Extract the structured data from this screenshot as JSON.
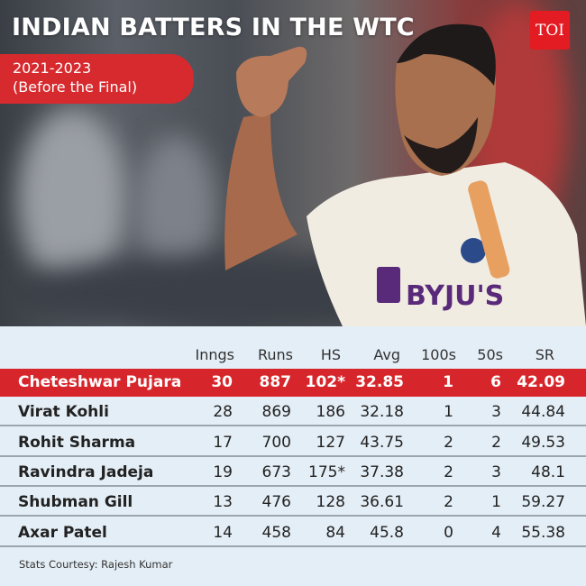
{
  "title": "INDIAN BATTERS IN THE WTC",
  "period": {
    "line1": "2021-2023",
    "line2": "(Before the Final)"
  },
  "logo": "TOI",
  "photo": {
    "jersey_text": "BYJU'S"
  },
  "table": {
    "columns": [
      "Inngs",
      "Runs",
      "HS",
      "Avg",
      "100s",
      "50s",
      "SR"
    ],
    "rows": [
      {
        "name": "Cheteshwar Pujara",
        "values": [
          "30",
          "887",
          "102*",
          "32.85",
          "1",
          "6",
          "42.09"
        ],
        "highlight": true
      },
      {
        "name": "Virat Kohli",
        "values": [
          "28",
          "869",
          "186",
          "32.18",
          "1",
          "3",
          "44.84"
        ]
      },
      {
        "name": "Rohit Sharma",
        "values": [
          "17",
          "700",
          "127",
          "43.75",
          "2",
          "2",
          "49.53"
        ]
      },
      {
        "name": "Ravindra Jadeja",
        "values": [
          "19",
          "673",
          "175*",
          "37.38",
          "2",
          "3",
          "48.1"
        ]
      },
      {
        "name": "Shubman Gill",
        "values": [
          "13",
          "476",
          "128",
          "36.61",
          "2",
          "1",
          "59.27"
        ]
      },
      {
        "name": "Axar Patel",
        "values": [
          "14",
          "458",
          "84",
          "45.8",
          "0",
          "4",
          "55.38"
        ]
      }
    ],
    "highlight_color": "#d7262b"
  },
  "footnote": "Stats Courtesy: Rajesh Kumar"
}
